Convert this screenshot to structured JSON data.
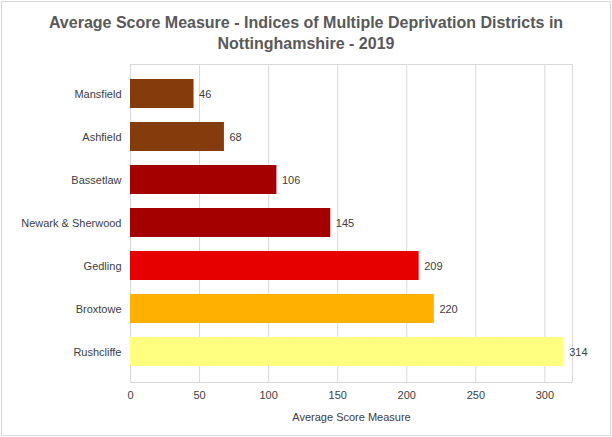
{
  "chart_data": {
    "type": "bar",
    "orientation": "horizontal",
    "title": "Average Score Measure - Indices of Multiple Deprivation Districts in Nottinghamshire - 2019",
    "x_label": "Average Score Measure",
    "categories": [
      "Mansfield",
      "Ashfield",
      "Bassetlaw",
      "Newark & Sherwood",
      "Gedling",
      "Broxtowe",
      "Rushcliffe"
    ],
    "values": [
      46,
      68,
      106,
      145,
      209,
      220,
      314
    ],
    "colors": [
      "#843c0c",
      "#843c0c",
      "#a50000",
      "#a50000",
      "#e60000",
      "#ffb000",
      "#ffff80"
    ],
    "xlim": [
      0,
      320
    ],
    "xticks": [
      0,
      50,
      100,
      150,
      200,
      250,
      300
    ],
    "grid": true,
    "data_labels": true
  }
}
